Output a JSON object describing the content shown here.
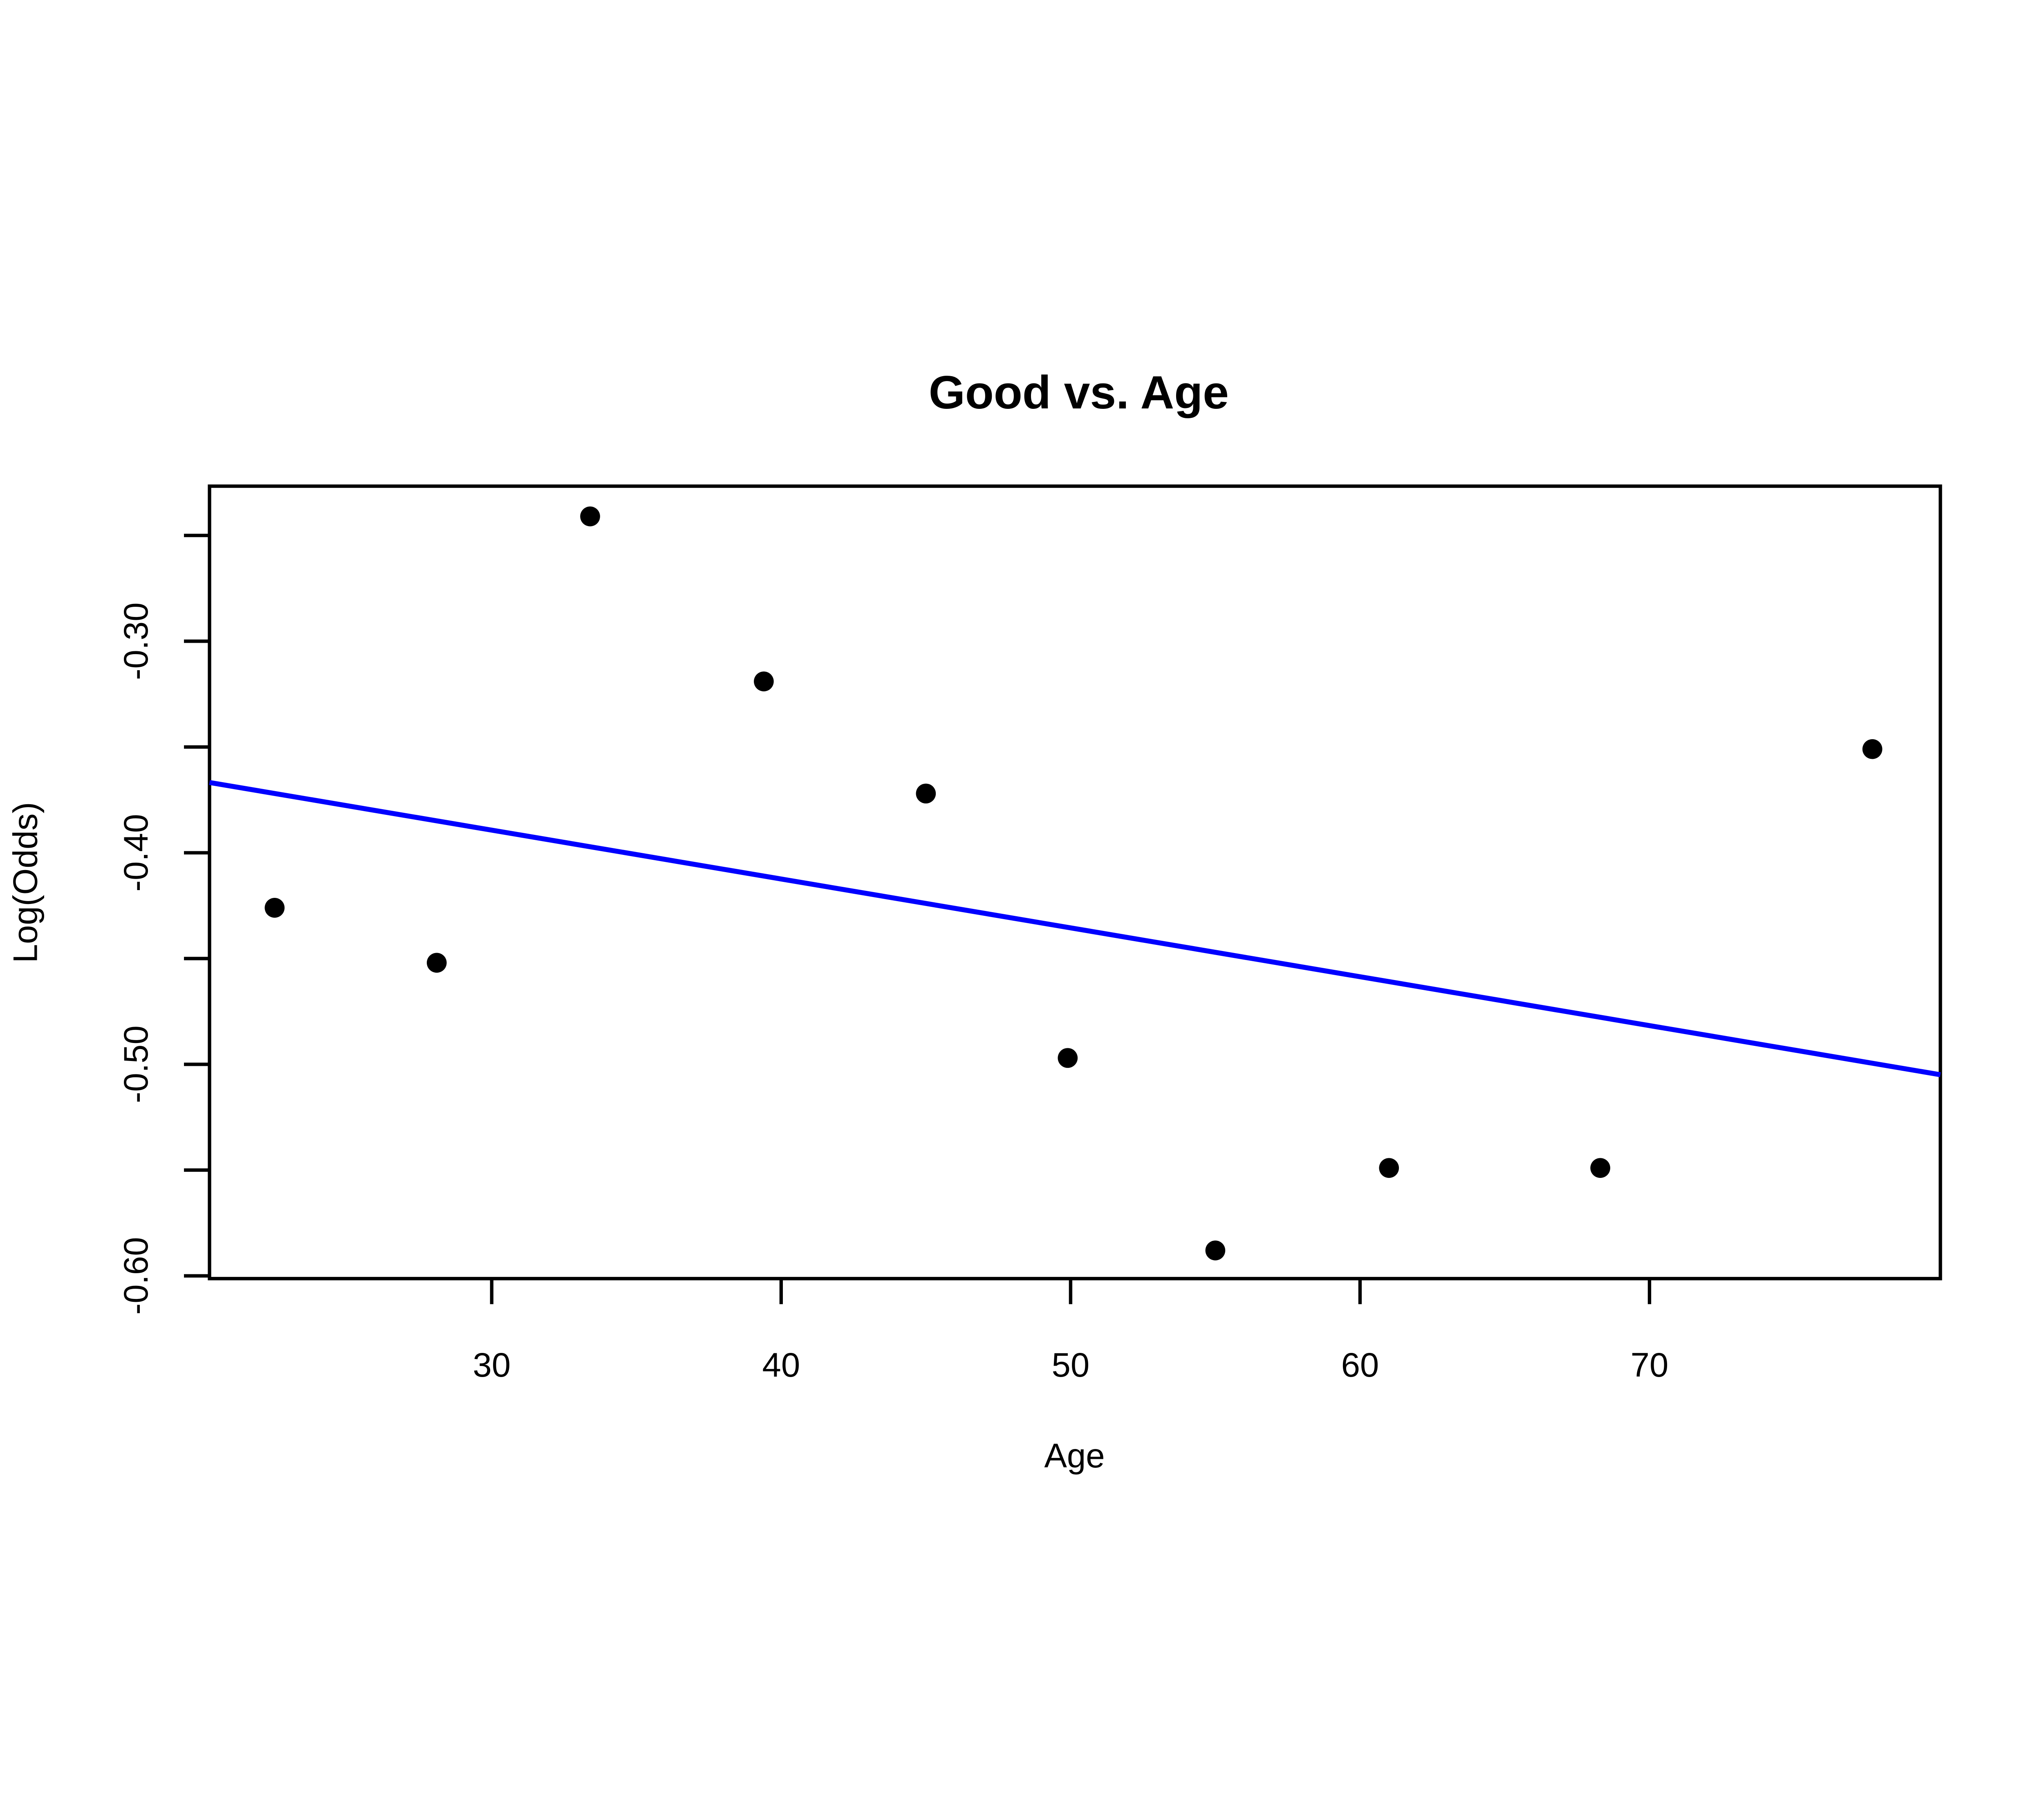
{
  "chart_data": {
    "type": "scatter",
    "title": "Good vs. Age",
    "xlabel": "Age",
    "ylabel": "Log(Odds)",
    "x_domain": [
      20.25,
      80.05
    ],
    "y_domain": [
      -0.6013,
      -0.2267
    ],
    "x_ticks": [
      {
        "v": 30,
        "label": "30"
      },
      {
        "v": 40,
        "label": "40"
      },
      {
        "v": 50,
        "label": "50"
      },
      {
        "v": 60,
        "label": "60"
      },
      {
        "v": 70,
        "label": "70"
      }
    ],
    "y_ticks_labeled": [
      {
        "v": -0.6,
        "label": "-0.60"
      },
      {
        "v": -0.5,
        "label": "-0.50"
      },
      {
        "v": -0.4,
        "label": "-0.40"
      },
      {
        "v": -0.3,
        "label": "-0.30"
      }
    ],
    "y_ticks_minor": [
      -0.55,
      -0.45,
      -0.35,
      -0.25
    ],
    "points": [
      {
        "x": 22.5,
        "y": -0.426
      },
      {
        "x": 28.1,
        "y": -0.452
      },
      {
        "x": 33.4,
        "y": -0.241
      },
      {
        "x": 39.4,
        "y": -0.319
      },
      {
        "x": 45.0,
        "y": -0.372
      },
      {
        "x": 49.9,
        "y": -0.497
      },
      {
        "x": 55.0,
        "y": -0.588
      },
      {
        "x": 61.0,
        "y": -0.549
      },
      {
        "x": 68.3,
        "y": -0.549
      },
      {
        "x": 77.7,
        "y": -0.351
      }
    ],
    "fit_line": {
      "intercept": -0.32,
      "slope": -0.00231,
      "color": "#0000ff"
    },
    "point_color": "#000000",
    "axis_color": "#000000",
    "background": "#ffffff",
    "grid": false,
    "legend": null
  }
}
